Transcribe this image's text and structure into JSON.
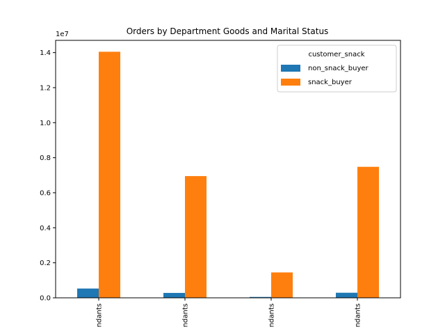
{
  "chart_data": {
    "type": "bar",
    "title": "Orders by Department Goods and Marital Status",
    "xlabel": "",
    "ylabel": "",
    "y_scale_label": "1e7",
    "categories": [
      "ndants",
      "ndants",
      "ndants",
      "ndants"
    ],
    "series": [
      {
        "name": "non_snack_buyer",
        "color": "#1f77b4",
        "values": [
          530000,
          280000,
          50000,
          290000
        ]
      },
      {
        "name": "snack_buyer",
        "color": "#ff7f0e",
        "values": [
          14050000,
          6950000,
          1450000,
          7480000
        ]
      }
    ],
    "yticks": [
      0,
      2000000,
      4000000,
      6000000,
      8000000,
      10000000,
      12000000,
      14000000
    ],
    "ytick_labels": [
      "0.0",
      "0.2",
      "0.4",
      "0.6",
      "0.8",
      "1.0",
      "1.2",
      "1.4"
    ],
    "ylim": [
      0,
      14700000
    ],
    "grid": false,
    "legend": {
      "title": "customer_snack",
      "position": "top-right"
    }
  }
}
